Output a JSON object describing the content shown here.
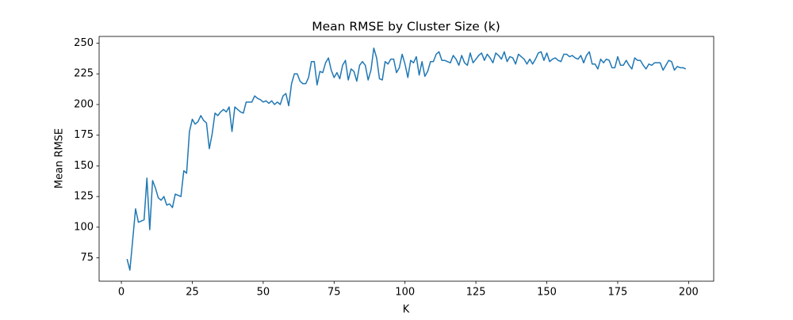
{
  "chart_data": {
    "type": "line",
    "title": "Mean RMSE by Cluster Size (k)",
    "x_label": "K",
    "y_label": "Mean RMSE",
    "color": "#1f77b4",
    "x": [
      2,
      3,
      4,
      5,
      6,
      7,
      8,
      9,
      10,
      11,
      12,
      13,
      14,
      15,
      16,
      17,
      18,
      19,
      20,
      21,
      22,
      23,
      24,
      25,
      26,
      27,
      28,
      29,
      30,
      31,
      32,
      33,
      34,
      35,
      36,
      37,
      38,
      39,
      40,
      41,
      42,
      43,
      44,
      45,
      46,
      47,
      48,
      49,
      50,
      51,
      52,
      53,
      54,
      55,
      56,
      57,
      58,
      59,
      60,
      61,
      62,
      63,
      64,
      65,
      66,
      67,
      68,
      69,
      70,
      71,
      72,
      73,
      74,
      75,
      76,
      77,
      78,
      79,
      80,
      81,
      82,
      83,
      84,
      85,
      86,
      87,
      88,
      89,
      90,
      91,
      92,
      93,
      94,
      95,
      96,
      97,
      98,
      99,
      100,
      101,
      102,
      103,
      104,
      105,
      106,
      107,
      108,
      109,
      110,
      111,
      112,
      113,
      114,
      115,
      116,
      117,
      118,
      119,
      120,
      121,
      122,
      123,
      124,
      125,
      126,
      127,
      128,
      129,
      130,
      131,
      132,
      133,
      134,
      135,
      136,
      137,
      138,
      139,
      140,
      141,
      142,
      143,
      144,
      145,
      146,
      147,
      148,
      149,
      150,
      151,
      152,
      153,
      154,
      155,
      156,
      157,
      158,
      159,
      160,
      161,
      162,
      163,
      164,
      165,
      166,
      167,
      168,
      169,
      170,
      171,
      172,
      173,
      174,
      175,
      176,
      177,
      178,
      179,
      180,
      181,
      182,
      183,
      184,
      185,
      186,
      187,
      188,
      189,
      190,
      191,
      192,
      193,
      194,
      195,
      196,
      197,
      198,
      199
    ],
    "values": [
      74,
      65,
      90,
      115,
      104,
      105,
      106,
      140,
      98,
      138,
      132,
      124,
      122,
      125,
      118,
      119,
      116,
      127,
      126,
      125,
      146,
      144,
      178,
      188,
      184,
      186,
      191,
      187,
      185,
      164,
      176,
      193,
      191,
      194,
      196,
      194,
      198,
      178,
      198,
      196,
      194,
      193,
      202,
      202,
      202,
      207,
      205,
      204,
      202,
      203,
      201,
      203,
      200,
      202,
      200,
      207,
      209,
      199,
      217,
      225,
      225,
      219,
      217,
      217,
      222,
      235,
      235,
      216,
      227,
      226,
      234,
      238,
      228,
      222,
      226,
      221,
      232,
      236,
      220,
      229,
      227,
      219,
      232,
      235,
      232,
      220,
      228,
      246,
      238,
      221,
      220,
      235,
      233,
      237,
      237,
      226,
      230,
      241,
      233,
      222,
      236,
      234,
      239,
      224,
      235,
      223,
      227,
      235,
      235,
      241,
      243,
      236,
      236,
      235,
      234,
      240,
      237,
      232,
      240,
      234,
      232,
      242,
      234,
      237,
      240,
      242,
      236,
      241,
      238,
      234,
      242,
      240,
      237,
      243,
      235,
      239,
      238,
      233,
      241,
      239,
      237,
      233,
      237,
      233,
      237,
      242,
      243,
      236,
      242,
      235,
      237,
      238,
      236,
      235,
      241,
      241,
      239,
      240,
      238,
      237,
      240,
      234,
      240,
      243,
      233,
      233,
      229,
      237,
      234,
      237,
      236,
      230,
      230,
      239,
      232,
      232,
      236,
      232,
      229,
      238,
      236,
      236,
      232,
      229,
      233,
      232,
      234,
      234,
      234,
      228,
      232,
      236,
      235,
      228,
      231,
      230,
      230,
      229
    ],
    "xlim": [
      -7.85,
      208.85
    ],
    "ylim": [
      56,
      255.5
    ],
    "xticks": [
      0,
      25,
      50,
      75,
      100,
      125,
      150,
      175,
      200
    ],
    "yticks": [
      75,
      100,
      125,
      150,
      175,
      200,
      225,
      250
    ]
  }
}
